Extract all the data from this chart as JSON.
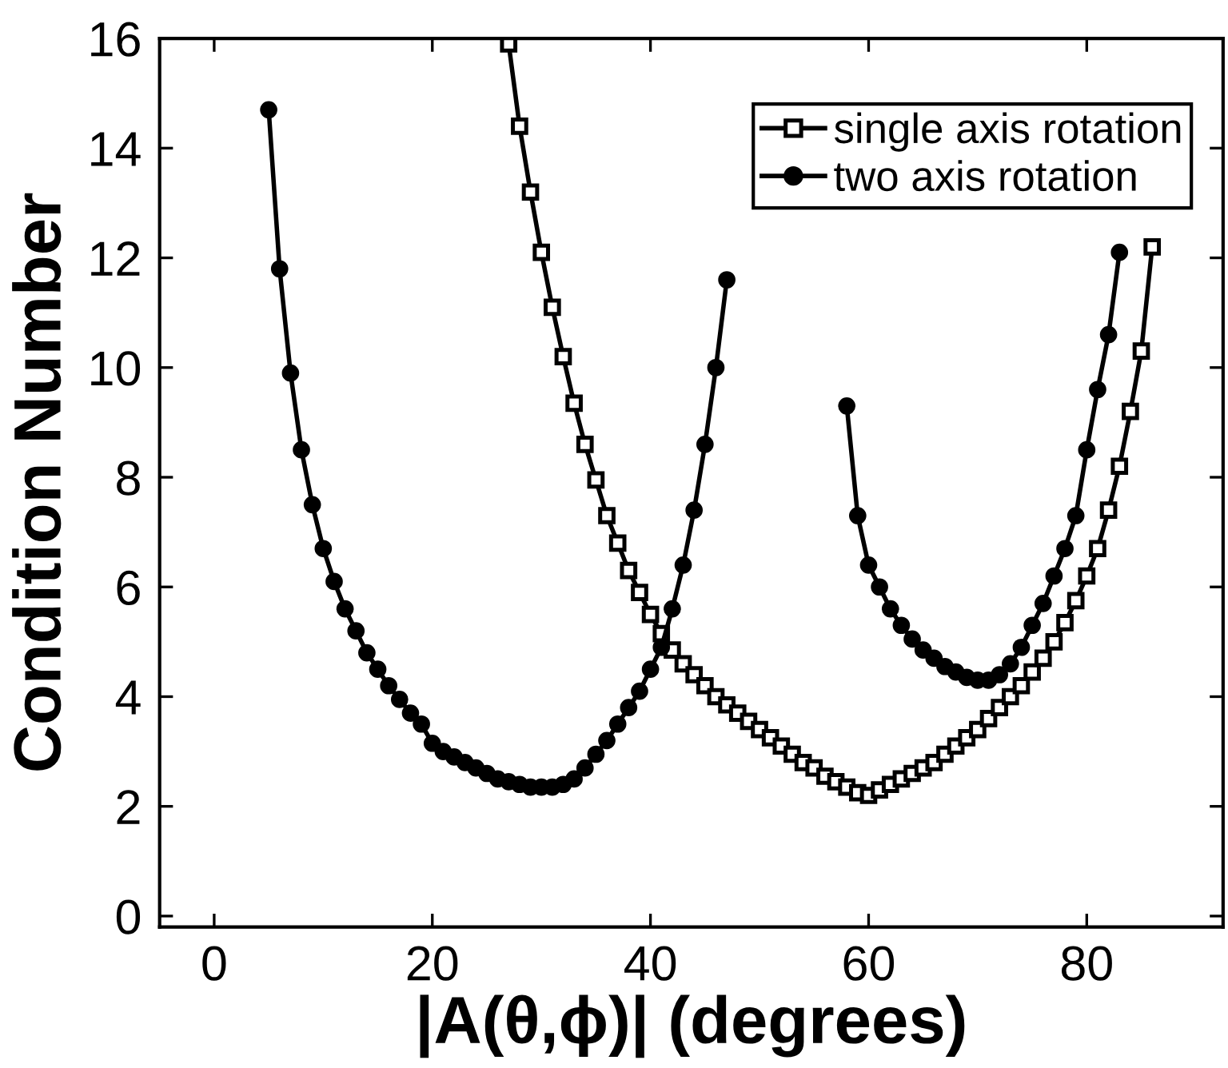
{
  "chart_data": {
    "type": "line",
    "xlabel": "|A(θ,ϕ)| (degrees)",
    "ylabel": "Condition Number",
    "xlim": [
      -5,
      92.5
    ],
    "ylim": [
      -0.2,
      16
    ],
    "xticks": [
      0,
      20,
      40,
      60,
      80
    ],
    "yticks": [
      0,
      2,
      4,
      6,
      8,
      10,
      12,
      14,
      16
    ],
    "grid": false,
    "legend": "top right",
    "line_style": "solid",
    "series": [
      {
        "name": "single axis rotation",
        "color": "#000000",
        "marker": "square",
        "x": [
          27,
          28,
          29,
          30,
          31,
          32,
          33,
          34,
          35,
          36,
          37,
          38,
          39,
          40,
          41,
          42,
          43,
          44,
          45,
          46,
          47,
          48,
          49,
          50,
          51,
          52,
          53,
          54,
          55,
          56,
          57,
          58,
          59,
          60,
          61,
          62,
          63,
          64,
          65,
          66,
          67,
          68,
          69,
          70,
          71,
          72,
          73,
          74,
          75,
          76,
          77,
          78,
          79,
          80,
          81,
          82,
          83,
          84,
          85,
          86
        ],
        "values": [
          15.9,
          14.4,
          13.2,
          12.1,
          11.1,
          10.2,
          9.35,
          8.6,
          7.95,
          7.3,
          6.8,
          6.3,
          5.9,
          5.5,
          5.15,
          4.85,
          4.6,
          4.4,
          4.2,
          4.0,
          3.85,
          3.7,
          3.55,
          3.4,
          3.25,
          3.1,
          2.95,
          2.8,
          2.7,
          2.55,
          2.45,
          2.35,
          2.25,
          2.2,
          2.3,
          2.4,
          2.5,
          2.6,
          2.7,
          2.8,
          2.95,
          3.1,
          3.25,
          3.4,
          3.6,
          3.8,
          4.0,
          4.2,
          4.45,
          4.7,
          5.0,
          5.35,
          5.75,
          6.2,
          6.7,
          7.4,
          8.2,
          9.2,
          10.3,
          12.2
        ]
      },
      {
        "name": "two axis rotation",
        "color": "#000000",
        "marker": "circle",
        "x": [
          5,
          6,
          7,
          8,
          9,
          10,
          11,
          12,
          13,
          14,
          15,
          16,
          17,
          18,
          19,
          20,
          21,
          22,
          23,
          24,
          25,
          26,
          27,
          28,
          29,
          30,
          31,
          32,
          33,
          34,
          35,
          36,
          37,
          38,
          39,
          40,
          41,
          42,
          43,
          44,
          45,
          46,
          47,
          null,
          58,
          59,
          60,
          61,
          62,
          63,
          64,
          65,
          66,
          67,
          68,
          69,
          70,
          71,
          72,
          73,
          74,
          75,
          76,
          77,
          78,
          79,
          80,
          81,
          82,
          83
        ],
        "values": [
          14.7,
          11.8,
          9.9,
          8.5,
          7.5,
          6.7,
          6.1,
          5.6,
          5.2,
          4.8,
          4.5,
          4.2,
          3.95,
          3.7,
          3.5,
          3.15,
          3.0,
          2.9,
          2.8,
          2.7,
          2.6,
          2.5,
          2.45,
          2.4,
          2.35,
          2.35,
          2.35,
          2.4,
          2.5,
          2.7,
          2.95,
          3.2,
          3.5,
          3.8,
          4.1,
          4.5,
          4.9,
          5.6,
          6.4,
          7.4,
          8.6,
          10.0,
          11.6,
          null,
          9.3,
          7.3,
          6.4,
          6.0,
          5.6,
          5.3,
          5.05,
          4.85,
          4.7,
          4.55,
          4.45,
          4.35,
          4.3,
          4.3,
          4.4,
          4.6,
          4.9,
          5.3,
          5.7,
          6.2,
          6.7,
          7.3,
          8.5,
          9.6,
          10.6,
          12.1
        ]
      }
    ]
  }
}
